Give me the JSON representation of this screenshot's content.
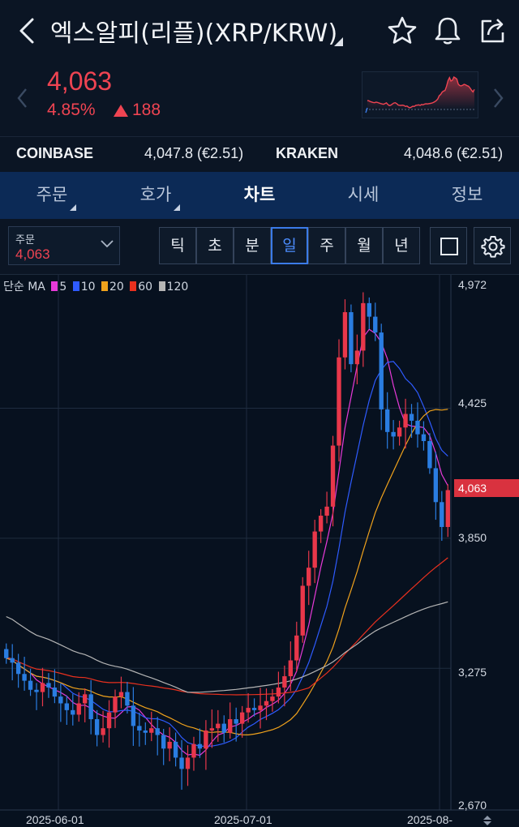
{
  "header": {
    "title": "엑스알피(리플)(XRP/KRW)"
  },
  "price": {
    "current": "4,063",
    "change_pct": "4.85%",
    "change_abs": "188",
    "direction": "up",
    "up_color": "#ef4452"
  },
  "exchanges": [
    {
      "name": "COINBASE",
      "value": "4,047.8 (€2.51)"
    },
    {
      "name": "KRAKEN",
      "value": "4,048.6 (€2.51)"
    }
  ],
  "tabs": [
    {
      "label": "주문",
      "has_menu": true
    },
    {
      "label": "호가",
      "has_menu": true
    },
    {
      "label": "차트",
      "active": true
    },
    {
      "label": "시세"
    },
    {
      "label": "정보"
    }
  ],
  "toolbar": {
    "order_label": "주문",
    "order_value": "4,063",
    "periods": [
      "틱",
      "초",
      "분",
      "일",
      "주",
      "월",
      "년"
    ],
    "active_period": "일"
  },
  "chart": {
    "ma_prefix": "단순 MA",
    "ma_lines": [
      {
        "label": "5",
        "color": "#e83ad9"
      },
      {
        "label": "10",
        "color": "#2e5bff"
      },
      {
        "label": "20",
        "color": "#f0a21c"
      },
      {
        "label": "60",
        "color": "#e8301e"
      },
      {
        "label": "120",
        "color": "#b5b5b5"
      }
    ],
    "y_ticks": [
      "4,972",
      "4,425",
      "3,850",
      "3,275",
      "2,670"
    ],
    "current_price_tag": "4,063",
    "x_ticks": [
      "2025-06-01",
      "2025-07-01",
      "2025-08-"
    ],
    "up_color": "#e8374a",
    "down_color": "#2a7de1"
  },
  "chart_data": {
    "type": "candlestick",
    "title": "",
    "y_axis_ticks": [
      4972,
      4425,
      3850,
      3275,
      2670
    ],
    "current_price": 4063,
    "x_tick_labels": [
      "2025-06-01",
      "2025-07-01",
      "2025-08-"
    ],
    "moving_averages": [
      "5",
      "10",
      "20",
      "60",
      "120"
    ],
    "close_series_approx": [
      3320,
      3300,
      3250,
      3220,
      3180,
      3170,
      3210,
      3190,
      3150,
      3120,
      3090,
      3070,
      3120,
      3160,
      3050,
      2980,
      3010,
      3080,
      3150,
      3170,
      3110,
      3020,
      3000,
      2990,
      3010,
      2980,
      2920,
      2950,
      2880,
      2830,
      2880,
      2940,
      2920,
      3000,
      3010,
      3030,
      2990,
      3050,
      3030,
      3080,
      3100,
      3090,
      3110,
      3130,
      3150,
      3190,
      3240,
      3310,
      3420,
      3640,
      3720,
      3880,
      3950,
      3990,
      4260,
      4650,
      4850,
      4620,
      4680,
      4890,
      4830,
      4760,
      4420,
      4320,
      4300,
      4340,
      4400,
      4370,
      4310,
      4280,
      4160,
      4010,
      3900,
      4063
    ]
  }
}
